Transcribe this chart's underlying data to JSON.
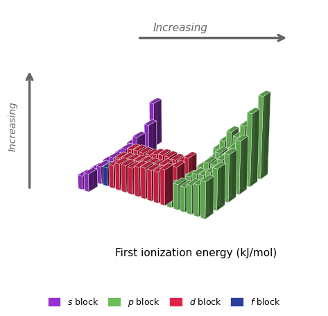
{
  "title": "First ionization energy (kJ/mol)",
  "arrow_label": "Increasing",
  "ylabel": "Increasing",
  "colors": {
    "s_block": "#9B30D0",
    "p_block": "#6BBF59",
    "d_block": "#E0244A",
    "f_block": "#2B3F9E",
    "background": "#ffffff",
    "grid": "#d0d4e0",
    "arrow": "#666666"
  },
  "legend": [
    {
      "label": "s block",
      "color": "#9B30D0"
    },
    {
      "label": "p block",
      "color": "#6BBF59"
    },
    {
      "label": "d block",
      "color": "#E0244A"
    },
    {
      "label": "f block",
      "color": "#2B3F9E"
    }
  ],
  "elements": {
    "H": {
      "period": 1,
      "group": 1,
      "ie": 1312,
      "block": "s"
    },
    "He": {
      "period": 1,
      "group": 18,
      "ie": 2372,
      "block": "p"
    },
    "Li": {
      "period": 2,
      "group": 1,
      "ie": 520,
      "block": "s"
    },
    "Be": {
      "period": 2,
      "group": 2,
      "ie": 899,
      "block": "s"
    },
    "B": {
      "period": 2,
      "group": 13,
      "ie": 800,
      "block": "p"
    },
    "C": {
      "period": 2,
      "group": 14,
      "ie": 1086,
      "block": "p"
    },
    "N": {
      "period": 2,
      "group": 15,
      "ie": 1402,
      "block": "p"
    },
    "O": {
      "period": 2,
      "group": 16,
      "ie": 1314,
      "block": "p"
    },
    "F": {
      "period": 2,
      "group": 17,
      "ie": 1681,
      "block": "p"
    },
    "Ne": {
      "period": 2,
      "group": 18,
      "ie": 2081,
      "block": "p"
    },
    "Na": {
      "period": 3,
      "group": 1,
      "ie": 496,
      "block": "s"
    },
    "Mg": {
      "period": 3,
      "group": 2,
      "ie": 738,
      "block": "s"
    },
    "Al": {
      "period": 3,
      "group": 13,
      "ie": 577,
      "block": "p"
    },
    "Si": {
      "period": 3,
      "group": 14,
      "ie": 786,
      "block": "p"
    },
    "P": {
      "period": 3,
      "group": 15,
      "ie": 1012,
      "block": "p"
    },
    "S": {
      "period": 3,
      "group": 16,
      "ie": 1000,
      "block": "p"
    },
    "Cl": {
      "period": 3,
      "group": 17,
      "ie": 1251,
      "block": "p"
    },
    "Ar": {
      "period": 3,
      "group": 18,
      "ie": 1521,
      "block": "p"
    },
    "K": {
      "period": 4,
      "group": 1,
      "ie": 419,
      "block": "s"
    },
    "Ca": {
      "period": 4,
      "group": 2,
      "ie": 590,
      "block": "s"
    },
    "Sc": {
      "period": 4,
      "group": 3,
      "ie": 633,
      "block": "d"
    },
    "Ti": {
      "period": 4,
      "group": 4,
      "ie": 659,
      "block": "d"
    },
    "V": {
      "period": 4,
      "group": 5,
      "ie": 651,
      "block": "d"
    },
    "Cr": {
      "period": 4,
      "group": 6,
      "ie": 653,
      "block": "d"
    },
    "Mn": {
      "period": 4,
      "group": 7,
      "ie": 717,
      "block": "d"
    },
    "Fe": {
      "period": 4,
      "group": 8,
      "ie": 762,
      "block": "d"
    },
    "Co": {
      "period": 4,
      "group": 9,
      "ie": 760,
      "block": "d"
    },
    "Ni": {
      "period": 4,
      "group": 10,
      "ie": 737,
      "block": "d"
    },
    "Cu": {
      "period": 4,
      "group": 11,
      "ie": 745,
      "block": "d"
    },
    "Zn": {
      "period": 4,
      "group": 12,
      "ie": 906,
      "block": "d"
    },
    "Ga": {
      "period": 4,
      "group": 13,
      "ie": 579,
      "block": "p"
    },
    "Ge": {
      "period": 4,
      "group": 14,
      "ie": 762,
      "block": "p"
    },
    "As": {
      "period": 4,
      "group": 15,
      "ie": 944,
      "block": "p"
    },
    "Se": {
      "period": 4,
      "group": 16,
      "ie": 941,
      "block": "p"
    },
    "Br": {
      "period": 4,
      "group": 17,
      "ie": 1140,
      "block": "p"
    },
    "Kr": {
      "period": 4,
      "group": 18,
      "ie": 1351,
      "block": "p"
    },
    "Rb": {
      "period": 5,
      "group": 1,
      "ie": 403,
      "block": "s"
    },
    "Sr": {
      "period": 5,
      "group": 2,
      "ie": 550,
      "block": "s"
    },
    "Y": {
      "period": 5,
      "group": 3,
      "ie": 600,
      "block": "d"
    },
    "Zr": {
      "period": 5,
      "group": 4,
      "ie": 640,
      "block": "d"
    },
    "Nb": {
      "period": 5,
      "group": 5,
      "ie": 652,
      "block": "d"
    },
    "Mo": {
      "period": 5,
      "group": 6,
      "ie": 684,
      "block": "d"
    },
    "Tc": {
      "period": 5,
      "group": 7,
      "ie": 702,
      "block": "d"
    },
    "Ru": {
      "period": 5,
      "group": 8,
      "ie": 711,
      "block": "d"
    },
    "Rh": {
      "period": 5,
      "group": 9,
      "ie": 720,
      "block": "d"
    },
    "Pd": {
      "period": 5,
      "group": 10,
      "ie": 805,
      "block": "d"
    },
    "Ag": {
      "period": 5,
      "group": 11,
      "ie": 731,
      "block": "d"
    },
    "Cd": {
      "period": 5,
      "group": 12,
      "ie": 868,
      "block": "d"
    },
    "In": {
      "period": 5,
      "group": 13,
      "ie": 558,
      "block": "p"
    },
    "Sn": {
      "period": 5,
      "group": 14,
      "ie": 709,
      "block": "p"
    },
    "Sb": {
      "period": 5,
      "group": 15,
      "ie": 834,
      "block": "p"
    },
    "Te": {
      "period": 5,
      "group": 16,
      "ie": 869,
      "block": "p"
    },
    "I": {
      "period": 5,
      "group": 17,
      "ie": 1008,
      "block": "p"
    },
    "Xe": {
      "period": 5,
      "group": 18,
      "ie": 1170,
      "block": "p"
    },
    "Cs": {
      "period": 6,
      "group": 1,
      "ie": 376,
      "block": "s"
    },
    "Ba": {
      "period": 6,
      "group": 2,
      "ie": 503,
      "block": "s"
    },
    "La": {
      "period": 6,
      "group": 3,
      "ie": 538,
      "block": "f"
    },
    "Ce": {
      "period": 6,
      "group": 4,
      "ie": 534,
      "block": "f"
    },
    "Pr": {
      "period": 6,
      "group": 5,
      "ie": 527,
      "block": "f"
    },
    "Nd": {
      "period": 6,
      "group": 6,
      "ie": 533,
      "block": "f"
    },
    "Pm": {
      "period": 6,
      "group": 7,
      "ie": 540,
      "block": "f"
    },
    "Sm": {
      "period": 6,
      "group": 8,
      "ie": 545,
      "block": "f"
    },
    "Eu": {
      "period": 6,
      "group": 9,
      "ie": 547,
      "block": "f"
    },
    "Gd": {
      "period": 6,
      "group": 10,
      "ie": 593,
      "block": "f"
    },
    "Tb": {
      "period": 6,
      "group": 11,
      "ie": 566,
      "block": "f"
    },
    "Dy": {
      "period": 6,
      "group": 12,
      "ie": 573,
      "block": "f"
    },
    "Ho": {
      "period": 6,
      "group": 13,
      "ie": 581,
      "block": "f"
    },
    "Er": {
      "period": 6,
      "group": 14,
      "ie": 589,
      "block": "f"
    },
    "Tm": {
      "period": 6,
      "group": 15,
      "ie": 597,
      "block": "f"
    },
    "Yb": {
      "period": 6,
      "group": 16,
      "ie": 603,
      "block": "f"
    },
    "Lu": {
      "period": 6,
      "group": 17,
      "ie": 524,
      "block": "f"
    },
    "Hf": {
      "period": 6,
      "group": 4,
      "ie": 659,
      "block": "d"
    },
    "Ta": {
      "period": 6,
      "group": 5,
      "ie": 761,
      "block": "d"
    },
    "W": {
      "period": 6,
      "group": 6,
      "ie": 770,
      "block": "d"
    },
    "Re": {
      "period": 6,
      "group": 7,
      "ie": 760,
      "block": "d"
    },
    "Os": {
      "period": 6,
      "group": 8,
      "ie": 840,
      "block": "d"
    },
    "Ir": {
      "period": 6,
      "group": 9,
      "ie": 880,
      "block": "d"
    },
    "Pt": {
      "period": 6,
      "group": 10,
      "ie": 870,
      "block": "d"
    },
    "Au": {
      "period": 6,
      "group": 11,
      "ie": 890,
      "block": "d"
    },
    "Hg": {
      "period": 6,
      "group": 12,
      "ie": 1007,
      "block": "d"
    },
    "Tl": {
      "period": 6,
      "group": 13,
      "ie": 589,
      "block": "p"
    },
    "Pb": {
      "period": 6,
      "group": 14,
      "ie": 716,
      "block": "p"
    },
    "Bi": {
      "period": 6,
      "group": 15,
      "ie": 703,
      "block": "p"
    },
    "Po": {
      "period": 6,
      "group": 16,
      "ie": 812,
      "block": "p"
    },
    "At": {
      "period": 6,
      "group": 17,
      "ie": 890,
      "block": "p"
    },
    "Rn": {
      "period": 6,
      "group": 18,
      "ie": 1037,
      "block": "p"
    },
    "Fr": {
      "period": 7,
      "group": 1,
      "ie": 393,
      "block": "s"
    },
    "Ra": {
      "period": 7,
      "group": 2,
      "ie": 509,
      "block": "s"
    }
  }
}
